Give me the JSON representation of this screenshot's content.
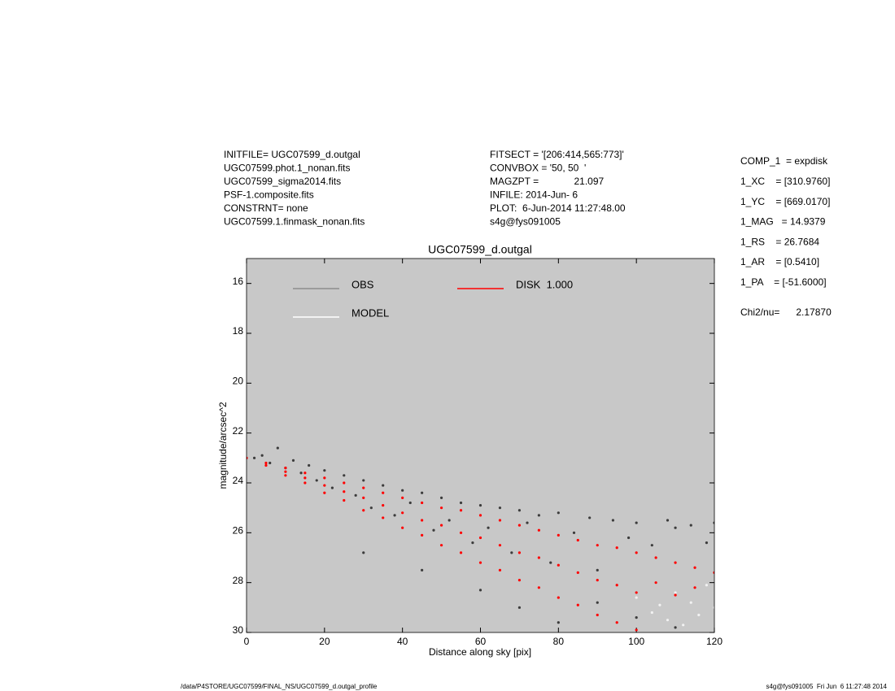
{
  "chart_data": {
    "type": "scatter",
    "title": "UGC07599_d.outgal",
    "x_label": "Distance along sky [pix]",
    "y_label": "magnitude/arcsec^2",
    "xlim": [
      0,
      120
    ],
    "xticks": [
      0,
      20,
      40,
      60,
      80,
      100,
      120
    ],
    "ylim": [
      15,
      30
    ],
    "y_inverted": true,
    "yticks": [
      16,
      18,
      20,
      22,
      24,
      26,
      28,
      30
    ],
    "background": "#c8c8c8",
    "series": [
      {
        "name": "OBS",
        "color": "#3c3c3c",
        "legend_color": "#8c8c8c",
        "x": [
          2,
          4,
          6,
          8,
          10,
          12,
          14,
          16,
          18,
          20,
          22,
          25,
          28,
          30,
          32,
          35,
          38,
          40,
          42,
          45,
          48,
          50,
          52,
          55,
          58,
          60,
          62,
          65,
          68,
          70,
          72,
          75,
          78,
          80,
          84,
          88,
          90,
          94,
          98,
          100,
          104,
          108,
          110,
          114,
          118,
          120,
          30,
          45,
          60,
          70,
          80,
          90,
          100,
          110
        ],
        "values": [
          23.0,
          22.9,
          23.2,
          22.6,
          23.4,
          23.1,
          23.6,
          23.3,
          23.9,
          23.5,
          24.2,
          23.7,
          24.5,
          23.9,
          25.0,
          24.1,
          25.3,
          24.3,
          24.8,
          24.4,
          25.9,
          24.6,
          25.5,
          24.8,
          26.4,
          24.9,
          25.8,
          25.0,
          26.8,
          25.1,
          25.6,
          25.3,
          27.2,
          25.2,
          26.0,
          25.4,
          27.5,
          25.5,
          26.2,
          25.6,
          26.5,
          25.5,
          25.8,
          25.7,
          26.4,
          25.6,
          26.8,
          27.5,
          28.3,
          29.0,
          29.6,
          28.8,
          29.4,
          29.8
        ]
      },
      {
        "name": "MODEL",
        "color": "#f2f2f2",
        "legend_color": "#ffffff",
        "x": [
          100,
          104,
          106,
          108,
          110,
          112,
          114,
          116,
          118,
          120
        ],
        "values": [
          28.6,
          29.2,
          28.9,
          29.5,
          28.4,
          29.7,
          28.8,
          29.3,
          28.1,
          29.0
        ]
      },
      {
        "name": "DISK  1.000",
        "color": "#ff0000",
        "legend_color": "#ff0000",
        "x": [
          0,
          5,
          5,
          10,
          10,
          10,
          15,
          15,
          15,
          20,
          20,
          20,
          25,
          25,
          25,
          30,
          30,
          30,
          35,
          35,
          35,
          40,
          40,
          40,
          45,
          45,
          45,
          50,
          50,
          50,
          55,
          55,
          55,
          60,
          60,
          60,
          65,
          65,
          65,
          70,
          70,
          70,
          75,
          75,
          75,
          80,
          80,
          80,
          85,
          85,
          85,
          90,
          90,
          90,
          95,
          95,
          95,
          100,
          100,
          100,
          105,
          105,
          110,
          110,
          115,
          115,
          120
        ],
        "values": [
          23.0,
          23.2,
          23.3,
          23.4,
          23.55,
          23.7,
          23.6,
          23.8,
          24.0,
          23.8,
          24.1,
          24.4,
          24.0,
          24.35,
          24.7,
          24.2,
          24.6,
          25.1,
          24.4,
          24.9,
          25.4,
          24.6,
          25.2,
          25.8,
          24.8,
          25.5,
          26.1,
          25.0,
          25.7,
          26.5,
          25.1,
          26.0,
          26.8,
          25.3,
          26.2,
          27.2,
          25.5,
          26.5,
          27.5,
          25.7,
          26.8,
          27.9,
          25.9,
          27.0,
          28.2,
          26.1,
          27.3,
          28.6,
          26.3,
          27.6,
          28.9,
          26.5,
          27.9,
          29.3,
          26.6,
          28.1,
          29.6,
          26.8,
          28.4,
          29.9,
          27.0,
          28.0,
          27.2,
          28.5,
          27.4,
          28.2,
          27.6
        ]
      }
    ]
  },
  "header_left": [
    "INITFILE= UGC07599_d.outgal",
    "UGC07599.phot.1_nonan.fits",
    "UGC07599_sigma2014.fits",
    "PSF-1.composite.fits",
    "CONSTRNT= none",
    "UGC07599.1.finmask_nonan.fits"
  ],
  "header_middle": [
    "FITSECT = '[206:414,565:773]'",
    "CONVBOX = '50, 50  '",
    "MAGZPT =             21.097",
    "INFILE: 2014-Jun- 6",
    "PLOT:  6-Jun-2014 11:27:48.00",
    "s4g@fys091005"
  ],
  "header_right": [
    "COMP_1  = expdisk",
    "1_XC    = [310.9760]",
    "1_YC    = [669.0170]",
    "1_MAG   = 14.9379",
    "1_RS    = 26.7684",
    "1_AR    = [0.5410]",
    "1_PA    = [-51.6000]"
  ],
  "chi2": "Chi2/nu=      2.17870",
  "footer_left": "/data/P4STORE/UGC07599/FINAL_NS/UGC07599_d.outgal_profile",
  "footer_right": "s4g@fys091005  Fri Jun  6 11:27:48 2014"
}
